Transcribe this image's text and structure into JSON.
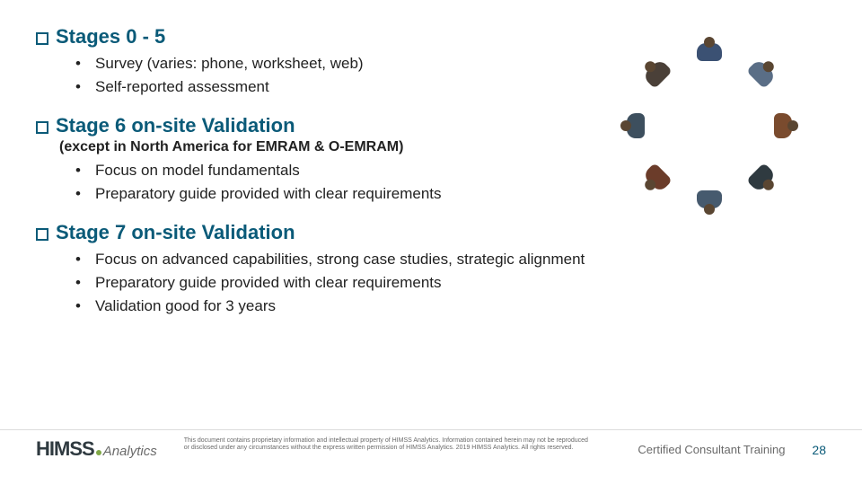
{
  "colors": {
    "heading": "#0a5a78",
    "body": "#222222",
    "footer_text": "#6a6a6a",
    "divider": "#dcdcdc",
    "logo_dark": "#2f3a40",
    "logo_dot": "#7fa846",
    "logo_analytics": "#6a6a6a"
  },
  "fontsize": {
    "heading": 22,
    "subnote": 16,
    "bullet": 17,
    "legal": 7,
    "credit": 13,
    "pagenum": 14,
    "logo_main": 22,
    "logo_sub": 15
  },
  "sections": [
    {
      "title": "Stages 0 - 5",
      "subnote": null,
      "bullets": [
        "Survey (varies: phone, worksheet, web)",
        "Self-reported assessment"
      ]
    },
    {
      "title": "Stage 6 on-site Validation",
      "subnote": "(except in North America for EMRAM & O-EMRAM)",
      "bullets": [
        "Focus on model fundamentals",
        "Preparatory guide provided with clear requirements"
      ]
    },
    {
      "title": "Stage 7 on-site Validation",
      "subnote": null,
      "bullets": [
        "Focus on advanced capabilities, strong case studies, strategic alignment",
        "Preparatory guide provided with clear requirements",
        "Validation good for 3 years"
      ]
    }
  ],
  "illustration": {
    "count": 8,
    "palette": [
      "#3b5173",
      "#5a6e86",
      "#7a4b2e",
      "#2f3a40",
      "#465a6e",
      "#6b3c2a",
      "#3d4f5e",
      "#4a4038"
    ]
  },
  "footer": {
    "logo_main": "HIMSS",
    "logo_sub": "Analytics",
    "legal_line1": "This document contains proprietary information and intellectual property of HIMSS Analytics. Information contained herein may not be reproduced",
    "legal_line2": "or disclosed under any circumstances without the express written permission of HIMSS Analytics. 2019 HIMSS Analytics. All rights reserved.",
    "credit": "Certified Consultant Training",
    "page": "28"
  }
}
